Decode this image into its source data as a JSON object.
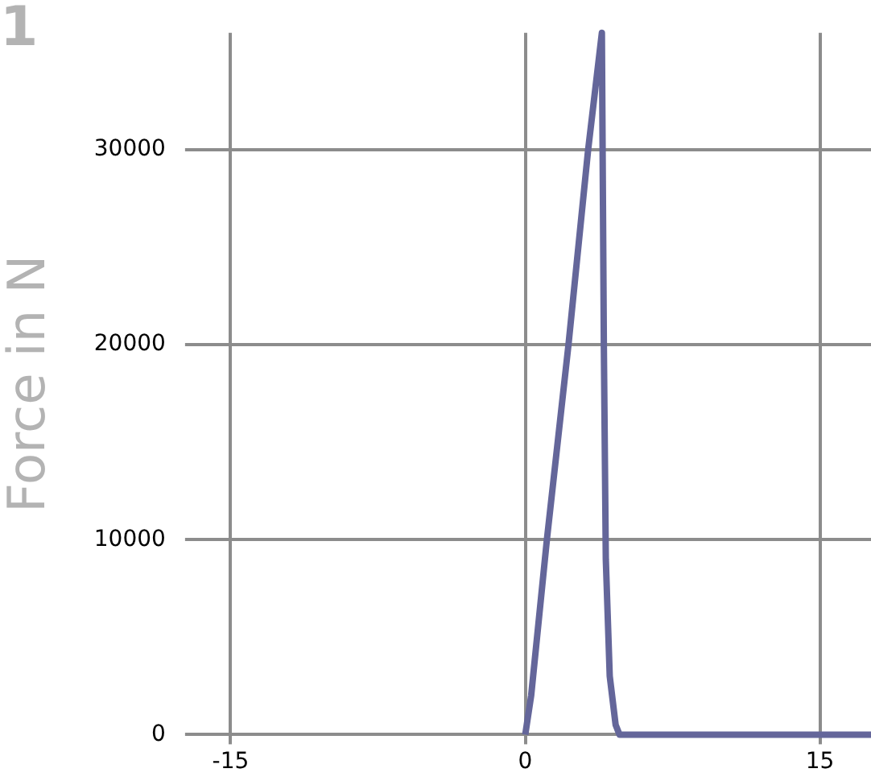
{
  "chart_data": {
    "type": "line",
    "ylabel": "Force in N",
    "annotations": [
      "1"
    ],
    "x": [
      0,
      0.3,
      1.1,
      2.2,
      3.2,
      3.9,
      4.0,
      4.1,
      4.3,
      4.6,
      4.8,
      17.6
    ],
    "series": [
      {
        "color": "#64669a",
        "values": [
          0,
          2000,
          10000,
          20000,
          30000,
          36000,
          20000,
          9000,
          3000,
          500,
          0,
          0
        ]
      }
    ],
    "xlim": [
      -16.5,
      17.6
    ],
    "xticks": [
      -15,
      0,
      15
    ],
    "ylim": [
      0,
      36000
    ],
    "yticks": [
      0,
      10000,
      20000,
      30000
    ],
    "grid": true,
    "legend": false,
    "marker": "none",
    "line_style": "solid"
  }
}
